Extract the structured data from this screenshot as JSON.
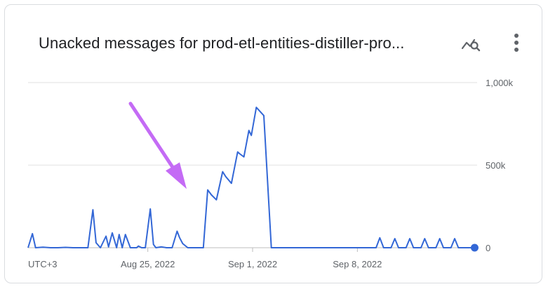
{
  "card": {
    "title": "Unacked messages for prod-etl-entities-distiller-pro...",
    "explore_icon": "explore-chart-icon",
    "more_icon": "more-vert-icon"
  },
  "colors": {
    "series": "#3367d6",
    "grid": "#e0e0e0",
    "axis_text": "#5f6368",
    "title": "#202124",
    "annotation_arrow": "#c46bf5"
  },
  "chart_data": {
    "type": "line",
    "title": "Unacked messages for prod-etl-entities-distiller-pro...",
    "xlabel": "",
    "ylabel": "",
    "timezone_label": "UTC+3",
    "x_ticks": [
      "Aug 25, 2022",
      "Sep 1, 2022",
      "Sep 8, 2022"
    ],
    "x_range": [
      "2022-08-17",
      "2022-09-16"
    ],
    "y_ticks": [
      "0",
      "500k",
      "1,000k"
    ],
    "ylim": [
      0,
      1000000
    ],
    "grid": true,
    "legend": "none",
    "annotation": "arrow pointing to the rise on Aug 25, 2022",
    "series": [
      {
        "x": [
          "2022-08-17 00:00",
          "2022-08-17 07:00",
          "2022-08-17 12:00",
          "2022-08-18 00:00",
          "2022-08-18 12:00",
          "2022-08-19 00:00",
          "2022-08-19 12:00",
          "2022-08-20 00:00",
          "2022-08-20 12:00",
          "2022-08-21 00:00",
          "2022-08-21 08:00",
          "2022-08-21 13:00",
          "2022-08-21 20:00",
          "2022-08-22 05:00",
          "2022-08-22 09:00",
          "2022-08-22 15:00",
          "2022-08-22 22:00",
          "2022-08-23 02:00",
          "2022-08-23 07:00",
          "2022-08-23 12:00",
          "2022-08-23 20:00",
          "2022-08-24 06:00",
          "2022-08-24 09:00",
          "2022-08-24 14:00",
          "2022-08-24 20:00",
          "2022-08-25 04:00",
          "2022-08-25 09:00",
          "2022-08-25 13:00",
          "2022-08-25 22:00",
          "2022-08-26 06:00",
          "2022-08-26 15:00",
          "2022-08-26 23:00",
          "2022-08-27 03:00",
          "2022-08-27 08:00",
          "2022-08-27 16:00",
          "2022-08-28 00:00",
          "2022-08-28 03:00",
          "2022-08-28 17:00",
          "2022-08-29 00:00",
          "2022-08-29 06:00",
          "2022-08-29 14:00",
          "2022-08-30 00:00",
          "2022-08-30 05:00",
          "2022-08-30 14:00",
          "2022-08-31 00:00",
          "2022-08-31 03:00",
          "2022-08-31 10:00",
          "2022-08-31 18:00",
          "2022-08-31 22:00",
          "2022-09-01 06:00",
          "2022-09-01 18:00",
          "2022-09-02 06:00",
          "2022-09-02 18:00",
          "2022-09-03 06:00",
          "2022-09-03 18:00",
          "2022-09-04 06:00",
          "2022-09-04 18:00",
          "2022-09-05 06:00",
          "2022-09-05 18:00",
          "2022-09-06 06:00",
          "2022-09-06 18:00",
          "2022-09-07 06:00",
          "2022-09-07 18:00",
          "2022-09-08 06:00",
          "2022-09-08 18:00",
          "2022-09-09 06:00",
          "2022-09-09 12:00",
          "2022-09-09 18:00",
          "2022-09-10 06:00",
          "2022-09-10 12:00",
          "2022-09-10 18:00",
          "2022-09-11 06:00",
          "2022-09-11 12:00",
          "2022-09-11 18:00",
          "2022-09-12 06:00",
          "2022-09-12 12:00",
          "2022-09-12 18:00",
          "2022-09-13 06:00",
          "2022-09-13 12:00",
          "2022-09-13 18:00",
          "2022-09-14 06:00",
          "2022-09-14 12:00",
          "2022-09-14 18:00",
          "2022-09-15 06:00",
          "2022-09-15 12:00",
          "2022-09-15 20:00"
        ],
        "y": [
          0,
          85000,
          0,
          3000,
          0,
          0,
          2000,
          0,
          0,
          0,
          230000,
          30000,
          0,
          70000,
          5000,
          90000,
          0,
          80000,
          0,
          80000,
          0,
          0,
          10000,
          0,
          0,
          235000,
          20000,
          0,
          5000,
          0,
          0,
          100000,
          60000,
          25000,
          0,
          0,
          0,
          0,
          350000,
          320000,
          290000,
          460000,
          430000,
          390000,
          580000,
          570000,
          550000,
          710000,
          680000,
          850000,
          800000,
          0,
          0,
          0,
          0,
          0,
          0,
          0,
          0,
          0,
          0,
          0,
          0,
          0,
          0,
          0,
          60000,
          0,
          0,
          55000,
          0,
          0,
          55000,
          0,
          0,
          55000,
          0,
          0,
          55000,
          0,
          0,
          55000,
          0,
          0,
          0,
          0
        ]
      }
    ]
  }
}
